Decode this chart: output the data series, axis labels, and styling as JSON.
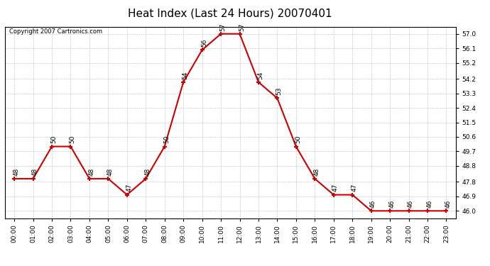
{
  "title": "Heat Index (Last 24 Hours) 20070401",
  "copyright": "Copyright 2007 Cartronics.com",
  "hours": [
    "00:00",
    "01:00",
    "02:00",
    "03:00",
    "04:00",
    "05:00",
    "06:00",
    "07:00",
    "08:00",
    "09:00",
    "10:00",
    "11:00",
    "12:00",
    "13:00",
    "14:00",
    "15:00",
    "16:00",
    "17:00",
    "18:00",
    "19:00",
    "20:00",
    "21:00",
    "22:00",
    "23:00"
  ],
  "values": [
    48,
    48,
    50,
    50,
    48,
    48,
    47,
    48,
    50,
    54,
    56,
    57,
    57,
    54,
    53,
    50,
    48,
    47,
    47,
    46,
    46,
    46,
    46,
    46
  ],
  "ylim_min": 45.55,
  "ylim_max": 57.45,
  "yticks": [
    46.0,
    46.9,
    47.8,
    48.8,
    49.7,
    50.6,
    51.5,
    52.4,
    53.3,
    54.2,
    55.2,
    56.1,
    57.0
  ],
  "line_color": "#cc0000",
  "marker_color": "#cc0000",
  "bg_color": "#ffffff",
  "grid_color": "#bbbbbb",
  "title_fontsize": 11,
  "label_fontsize": 6.5,
  "tick_fontsize": 6.5,
  "copyright_fontsize": 6
}
